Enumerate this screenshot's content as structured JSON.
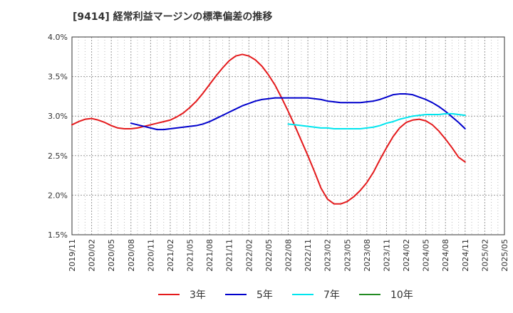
{
  "chart_data": {
    "type": "line",
    "title": "[9414]  経常利益マージンの標準偏差の推移",
    "xlabel": "",
    "ylabel": "",
    "ylim": [
      0.015,
      0.04
    ],
    "y_ticks": [
      "1.5%",
      "2.0%",
      "2.5%",
      "3.0%",
      "3.5%",
      "4.0%"
    ],
    "x_ticks": [
      "2019/11",
      "2020/02",
      "2020/05",
      "2020/08",
      "2020/11",
      "2021/02",
      "2021/05",
      "2021/08",
      "2021/11",
      "2022/02",
      "2022/05",
      "2022/08",
      "2022/11",
      "2023/02",
      "2023/05",
      "2023/08",
      "2023/11",
      "2024/02",
      "2024/05",
      "2024/08",
      "2024/11",
      "2025/02",
      "2025/05"
    ],
    "grid": true,
    "legend_position": "bottom",
    "series": [
      {
        "name": "3年",
        "color": "#e41a1c",
        "x": [
          "2019/11",
          "2019/12",
          "2020/01",
          "2020/02",
          "2020/03",
          "2020/04",
          "2020/05",
          "2020/06",
          "2020/07",
          "2020/08",
          "2020/09",
          "2020/10",
          "2020/11",
          "2020/12",
          "2021/01",
          "2021/02",
          "2021/03",
          "2021/04",
          "2021/05",
          "2021/06",
          "2021/07",
          "2021/08",
          "2021/09",
          "2021/10",
          "2021/11",
          "2021/12",
          "2022/01",
          "2022/02",
          "2022/03",
          "2022/04",
          "2022/05",
          "2022/06",
          "2022/07",
          "2022/08",
          "2022/09",
          "2022/10",
          "2022/11",
          "2022/12",
          "2023/01",
          "2023/02",
          "2023/03",
          "2023/04",
          "2023/05",
          "2023/06",
          "2023/07",
          "2023/08",
          "2023/09",
          "2023/10",
          "2023/11",
          "2023/12",
          "2024/01",
          "2024/02",
          "2024/03",
          "2024/04",
          "2024/05",
          "2024/06",
          "2024/07",
          "2024/08",
          "2024/09",
          "2024/10",
          "2024/11"
        ],
        "y": [
          0.0289,
          0.0293,
          0.0296,
          0.0297,
          0.0295,
          0.0292,
          0.0288,
          0.0285,
          0.0284,
          0.0284,
          0.0285,
          0.0287,
          0.0289,
          0.0291,
          0.0293,
          0.0295,
          0.0299,
          0.0304,
          0.0311,
          0.0319,
          0.0329,
          0.034,
          0.0351,
          0.0361,
          0.037,
          0.0376,
          0.0378,
          0.0376,
          0.0371,
          0.0363,
          0.0352,
          0.0339,
          0.0323,
          0.0306,
          0.0288,
          0.0269,
          0.025,
          0.023,
          0.0209,
          0.0195,
          0.0189,
          0.0189,
          0.0192,
          0.0198,
          0.0206,
          0.0216,
          0.0229,
          0.0245,
          0.026,
          0.0274,
          0.0285,
          0.0292,
          0.0295,
          0.0296,
          0.0294,
          0.0289,
          0.0281,
          0.0271,
          0.026,
          0.0248,
          0.0242
        ]
      },
      {
        "name": "5年",
        "color": "#0000cc",
        "x": [
          "2020/08",
          "2020/09",
          "2020/10",
          "2020/11",
          "2020/12",
          "2021/01",
          "2021/02",
          "2021/03",
          "2021/04",
          "2021/05",
          "2021/06",
          "2021/07",
          "2021/08",
          "2021/09",
          "2021/10",
          "2021/11",
          "2021/12",
          "2022/01",
          "2022/02",
          "2022/03",
          "2022/04",
          "2022/05",
          "2022/06",
          "2022/07",
          "2022/08",
          "2022/09",
          "2022/10",
          "2022/11",
          "2022/12",
          "2023/01",
          "2023/02",
          "2023/03",
          "2023/04",
          "2023/05",
          "2023/06",
          "2023/07",
          "2023/08",
          "2023/09",
          "2023/10",
          "2023/11",
          "2023/12",
          "2024/01",
          "2024/02",
          "2024/03",
          "2024/04",
          "2024/05",
          "2024/06",
          "2024/07",
          "2024/08",
          "2024/09",
          "2024/10",
          "2024/11"
        ],
        "y": [
          0.0291,
          0.0289,
          0.0287,
          0.0285,
          0.0283,
          0.0283,
          0.0284,
          0.0285,
          0.0286,
          0.0287,
          0.0288,
          0.029,
          0.0293,
          0.0297,
          0.0301,
          0.0305,
          0.0309,
          0.0313,
          0.0316,
          0.0319,
          0.0321,
          0.0322,
          0.0323,
          0.0323,
          0.0323,
          0.0323,
          0.0323,
          0.0323,
          0.0322,
          0.0321,
          0.0319,
          0.0318,
          0.0317,
          0.0317,
          0.0317,
          0.0317,
          0.0318,
          0.0319,
          0.0321,
          0.0324,
          0.0327,
          0.0328,
          0.0328,
          0.0327,
          0.0324,
          0.0321,
          0.0317,
          0.0312,
          0.0306,
          0.0299,
          0.0292,
          0.0284
        ]
      },
      {
        "name": "7年",
        "color": "#00e5ee",
        "x": [
          "2022/08",
          "2022/09",
          "2022/10",
          "2022/11",
          "2022/12",
          "2023/01",
          "2023/02",
          "2023/03",
          "2023/04",
          "2023/05",
          "2023/06",
          "2023/07",
          "2023/08",
          "2023/09",
          "2023/10",
          "2023/11",
          "2023/12",
          "2024/01",
          "2024/02",
          "2024/03",
          "2024/04",
          "2024/05",
          "2024/06",
          "2024/07",
          "2024/08",
          "2024/09",
          "2024/10",
          "2024/11"
        ],
        "y": [
          0.029,
          0.0289,
          0.0288,
          0.0287,
          0.0286,
          0.0285,
          0.0285,
          0.0284,
          0.0284,
          0.0284,
          0.0284,
          0.0284,
          0.0285,
          0.0286,
          0.0288,
          0.0291,
          0.0293,
          0.0296,
          0.0298,
          0.03,
          0.0301,
          0.0302,
          0.0302,
          0.0302,
          0.0303,
          0.0303,
          0.0302,
          0.0301
        ]
      },
      {
        "name": "10年",
        "color": "#228b22",
        "x": [],
        "y": []
      }
    ]
  }
}
